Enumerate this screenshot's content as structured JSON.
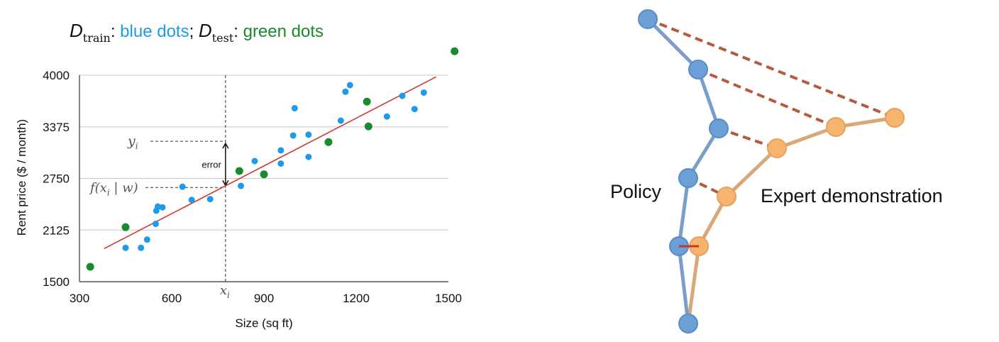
{
  "chart_data": [
    {
      "type": "scatter",
      "title": {
        "train_symbol": "D",
        "train_sub": "train",
        "train_desc": "blue dots",
        "sep": "; ",
        "test_symbol": "D",
        "test_sub": "test",
        "test_desc": "green dots",
        "colon": ": "
      },
      "xlabel": "Size (sq ft)",
      "ylabel": "Rent price ($ / month)",
      "xlim": [
        300,
        1500
      ],
      "ylim": [
        1500,
        4000
      ],
      "xticks": [
        "300",
        "600",
        "900",
        "1200",
        "1500"
      ],
      "yticks": [
        "1500",
        "2125",
        "2750",
        "3375",
        "4000"
      ],
      "grid": "horizontal",
      "colors": {
        "train": "#1e9be8",
        "test": "#1a8a2e",
        "fit": "#d0392f",
        "title_train": "#1e9be8",
        "title_test": "#1a8a2e"
      },
      "series": [
        {
          "key": "train",
          "points": [
            [
              450,
              1910
            ],
            [
              500,
              1910
            ],
            [
              520,
              2010
            ],
            [
              548,
              2200
            ],
            [
              550,
              2360
            ],
            [
              555,
              2410
            ],
            [
              570,
              2400
            ],
            [
              635,
              2650
            ],
            [
              665,
              2490
            ],
            [
              725,
              2500
            ],
            [
              825,
              2660
            ],
            [
              870,
              2960
            ],
            [
              955,
              2930
            ],
            [
              955,
              3090
            ],
            [
              995,
              3270
            ],
            [
              1000,
              3600
            ],
            [
              1045,
              3280
            ],
            [
              1045,
              3010
            ],
            [
              1150,
              3450
            ],
            [
              1165,
              3800
            ],
            [
              1180,
              3880
            ],
            [
              1300,
              3500
            ],
            [
              1350,
              3750
            ],
            [
              1390,
              3590
            ],
            [
              1420,
              3790
            ]
          ]
        },
        {
          "key": "test",
          "points": [
            [
              335,
              1680
            ],
            [
              450,
              2160
            ],
            [
              820,
              2840
            ],
            [
              900,
              2800
            ],
            [
              1110,
              3190
            ],
            [
              1235,
              3680
            ],
            [
              1240,
              3380
            ],
            [
              1520,
              4290
            ]
          ]
        }
      ],
      "fit_line": {
        "x": [
          380,
          1460
        ],
        "y": [
          1900,
          3980
        ]
      },
      "annotation": {
        "xi_value": 775,
        "yi_value": 3200,
        "fxi_value": 2640,
        "xi_label": "x",
        "xi_sub": "i",
        "yi_label": "y",
        "yi_sub": "i",
        "fx_label": "f(x",
        "fx_sub": "i",
        "fx_tail": " | w)",
        "error_label": "error"
      }
    }
  ],
  "diagram": {
    "policy_label": "Policy",
    "expert_label": "Expert demonstration",
    "colors": {
      "policy_fill": "#6c9fd6",
      "policy_line": "#7a9ec9",
      "expert_fill": "#f6b46f",
      "expert_line": "#d9a878",
      "dash": "#b65a3e"
    }
  }
}
